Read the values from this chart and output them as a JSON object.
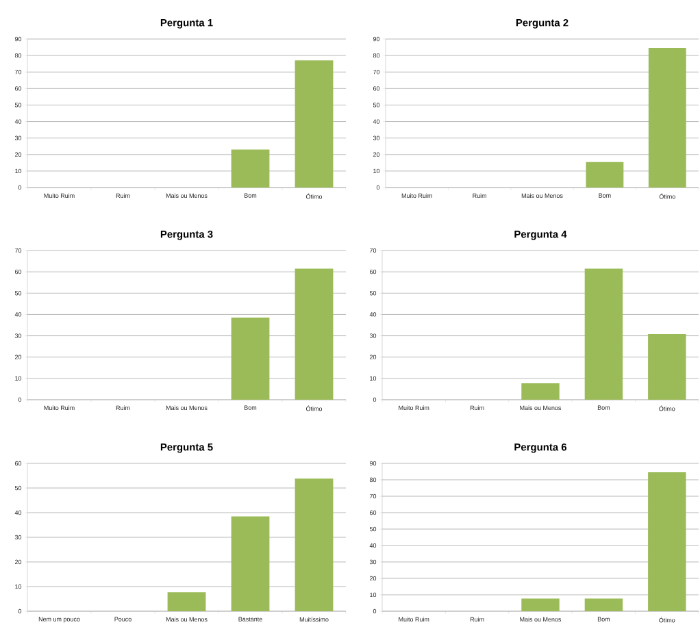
{
  "chart_data": [
    {
      "type": "bar",
      "title": "Pergunta 1",
      "categories": [
        "Muito Ruim",
        "Ruim",
        "Mais ou Menos",
        "Bom",
        "Ótimo"
      ],
      "values": [
        0,
        0,
        0,
        23,
        77
      ],
      "color": "#9bbb59",
      "ylim": [
        0,
        90
      ],
      "yticks": [
        0,
        10,
        20,
        30,
        40,
        50,
        60,
        70,
        80,
        90
      ],
      "grid": "y"
    },
    {
      "type": "bar",
      "title": "Pergunta 2",
      "categories": [
        "Muito Ruim",
        "Ruim",
        "Mais ou Menos",
        "Bom",
        "Ótimo"
      ],
      "values": [
        0,
        0,
        0,
        15.4,
        84.6
      ],
      "color": "#9bbb59",
      "ylim": [
        0,
        90
      ],
      "yticks": [
        0,
        10,
        20,
        30,
        40,
        50,
        60,
        70,
        80,
        90
      ],
      "grid": "y"
    },
    {
      "type": "bar",
      "title": "Pergunta 3",
      "categories": [
        "Muito Ruim",
        "Ruim",
        "Mais ou Menos",
        "Bom",
        "Ótimo"
      ],
      "values": [
        0,
        0,
        0,
        38.5,
        61.5
      ],
      "color": "#9bbb59",
      "ylim": [
        0,
        70
      ],
      "yticks": [
        0,
        10,
        20,
        30,
        40,
        50,
        60,
        70
      ],
      "grid": "y"
    },
    {
      "type": "bar",
      "title": "Pergunta 4",
      "categories": [
        "Muito Ruim",
        "Ruim",
        "Mais ou Menos",
        "Bom",
        "Ótimo"
      ],
      "values": [
        0,
        0,
        7.7,
        61.5,
        30.8
      ],
      "color": "#9bbb59",
      "ylim": [
        0,
        70
      ],
      "yticks": [
        0,
        10,
        20,
        30,
        40,
        50,
        60,
        70
      ],
      "grid": "y"
    },
    {
      "type": "bar",
      "title": "Pergunta 5",
      "categories": [
        "Nem um pouco",
        "Pouco",
        "Mais ou Menos",
        "Bastante",
        "Muitíssimo"
      ],
      "values": [
        0,
        0,
        7.7,
        38.5,
        53.8
      ],
      "color": "#9bbb59",
      "ylim": [
        0,
        60
      ],
      "yticks": [
        0,
        10,
        20,
        30,
        40,
        50,
        60
      ],
      "grid": "y"
    },
    {
      "type": "bar",
      "title": "Pergunta 6",
      "categories": [
        "Muito Ruim",
        "Ruim",
        "Mais ou Menos",
        "Bom",
        "Ótimo"
      ],
      "values": [
        0,
        0,
        7.7,
        7.7,
        84.6
      ],
      "color": "#9bbb59",
      "ylim": [
        0,
        90
      ],
      "yticks": [
        0,
        10,
        20,
        30,
        40,
        50,
        60,
        70,
        80,
        90
      ],
      "grid": "y"
    }
  ]
}
